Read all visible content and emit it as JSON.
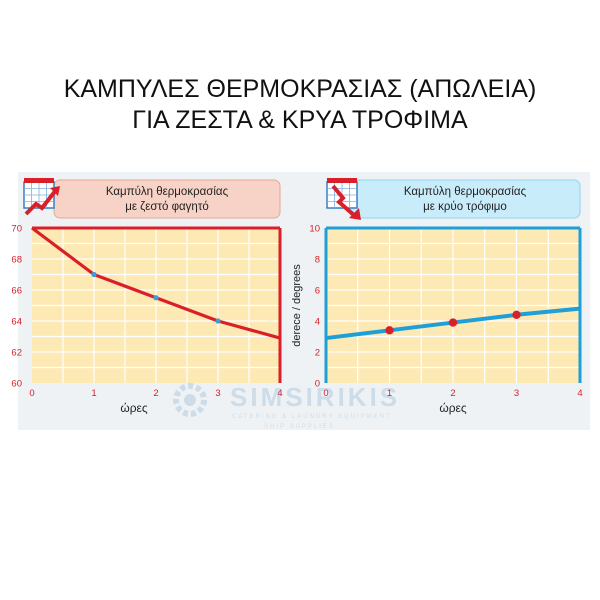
{
  "page": {
    "title_line1": "ΚΑΜΠΥΛΕΣ ΘΕΡΜΟΚΡΑΣΙΑΣ (ΑΠΩΛΕΙΑ)",
    "title_line2": "ΓΙΑ ΖΕΣΤΑ & ΚΡΥΑ ΤΡΟΦΙΜΑ"
  },
  "watermark": {
    "brand": "SIMSIRIKIS",
    "line1": "CATERING & LAUNDRY EQUIPMENT",
    "line2": "SHIP SUPPLIES"
  },
  "colors": {
    "grid_background": "#fde9b4",
    "grid_lines": "#ffffff",
    "hot_series": "#d9202a",
    "hot_markers": "#3a9fd8",
    "hot_header_bg": "#f7d2c6",
    "cold_series": "#1e9fd8",
    "cold_markers": "#d9202a",
    "cold_header_bg": "#c9ecfa",
    "tick_text": "#d9202a"
  },
  "chart_data": [
    {
      "id": "hot",
      "type": "line",
      "title": "Καμπύλη θερμοκρασίας με ζεστό φαγητό",
      "title_lines": [
        "Καμπύλη θερμοκρασίας",
        "με ζεστό φαγητό"
      ],
      "icon": "rising-temperature-chart-icon",
      "xlabel": "ώρες",
      "ylabel": "",
      "x": [
        0,
        1,
        2,
        3,
        4
      ],
      "y": [
        70,
        67,
        65.5,
        64,
        62.9
      ],
      "markers_at": [
        1,
        2,
        3
      ],
      "xlim": [
        0,
        4
      ],
      "ylim": [
        60,
        70
      ],
      "xticks": [
        "0",
        "1",
        "2",
        "3",
        "4"
      ],
      "yticks": [
        "60",
        "62",
        "64",
        "66",
        "68",
        "70"
      ],
      "frame_sides": [
        "top",
        "right"
      ],
      "grid": true
    },
    {
      "id": "cold",
      "type": "line",
      "title": "Καμπύλη θερμοκρασίας με κρύο τρόφιμο",
      "title_lines": [
        "Καμπύλη θερμοκρασίας",
        "με κρύο τρόφιμο"
      ],
      "icon": "falling-temperature-chart-icon",
      "xlabel": "ώρες",
      "ylabel": "derece / degrees",
      "x": [
        0,
        1,
        2,
        3,
        4
      ],
      "y": [
        2.9,
        3.4,
        3.9,
        4.4,
        4.8
      ],
      "markers_at": [
        1,
        2,
        3
      ],
      "xlim": [
        0,
        4
      ],
      "ylim": [
        0,
        10
      ],
      "xticks": [
        "0",
        "1",
        "2",
        "3",
        "4"
      ],
      "yticks": [
        "0",
        "2",
        "4",
        "6",
        "8",
        "10"
      ],
      "frame_sides": [
        "left",
        "right",
        "top"
      ],
      "grid": true
    }
  ]
}
